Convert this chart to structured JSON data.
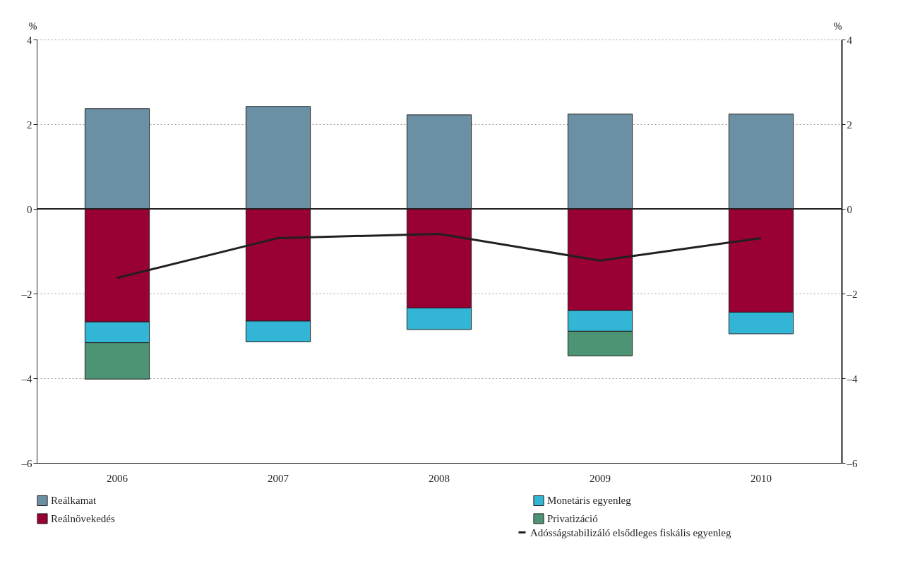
{
  "chart_data": {
    "type": "bar",
    "stacked": true,
    "categories": [
      "2006",
      "2007",
      "2008",
      "2009",
      "2010"
    ],
    "ylabel": "%",
    "y2label": "%",
    "ylim": [
      -6,
      4
    ],
    "yticks": [
      {
        "value": -6,
        "label": "–6"
      },
      {
        "value": -4,
        "label": "–4"
      },
      {
        "value": -2,
        "label": "–2"
      },
      0,
      2,
      4
    ],
    "y2lim": [
      -6,
      4
    ],
    "y2ticks": [
      {
        "value": -6,
        "label": "–6"
      },
      {
        "value": -4,
        "label": "–4"
      },
      {
        "value": -2,
        "label": "–2"
      },
      0,
      2,
      4
    ],
    "grid": "y",
    "legend": "bottom",
    "ref_lines": [
      {
        "axis": "y",
        "value": 0,
        "color": "#231f20"
      }
    ],
    "series": [
      {
        "name": "Reálkamat",
        "color": "#6b8fa3",
        "values": [
          2.37,
          2.42,
          2.22,
          2.24,
          2.24
        ]
      },
      {
        "name": "Reálnövekedés",
        "color": "#990033",
        "values": [
          -2.67,
          -2.65,
          -2.34,
          -2.4,
          -2.44
        ]
      },
      {
        "name": "Monetáris egyenleg",
        "color": "#33b5d6",
        "values": [
          -0.49,
          -0.49,
          -0.51,
          -0.49,
          -0.51
        ]
      },
      {
        "name": "Privatizáció",
        "color": "#4d9474",
        "values": [
          -0.86,
          null,
          null,
          -0.58,
          null
        ]
      },
      {
        "name": "Adósságstabilizáló elsődleges fiskális egyenleg",
        "type": "line",
        "color": "#231f20",
        "values": [
          -1.63,
          -0.69,
          -0.59,
          -1.22,
          -0.69
        ]
      }
    ]
  }
}
